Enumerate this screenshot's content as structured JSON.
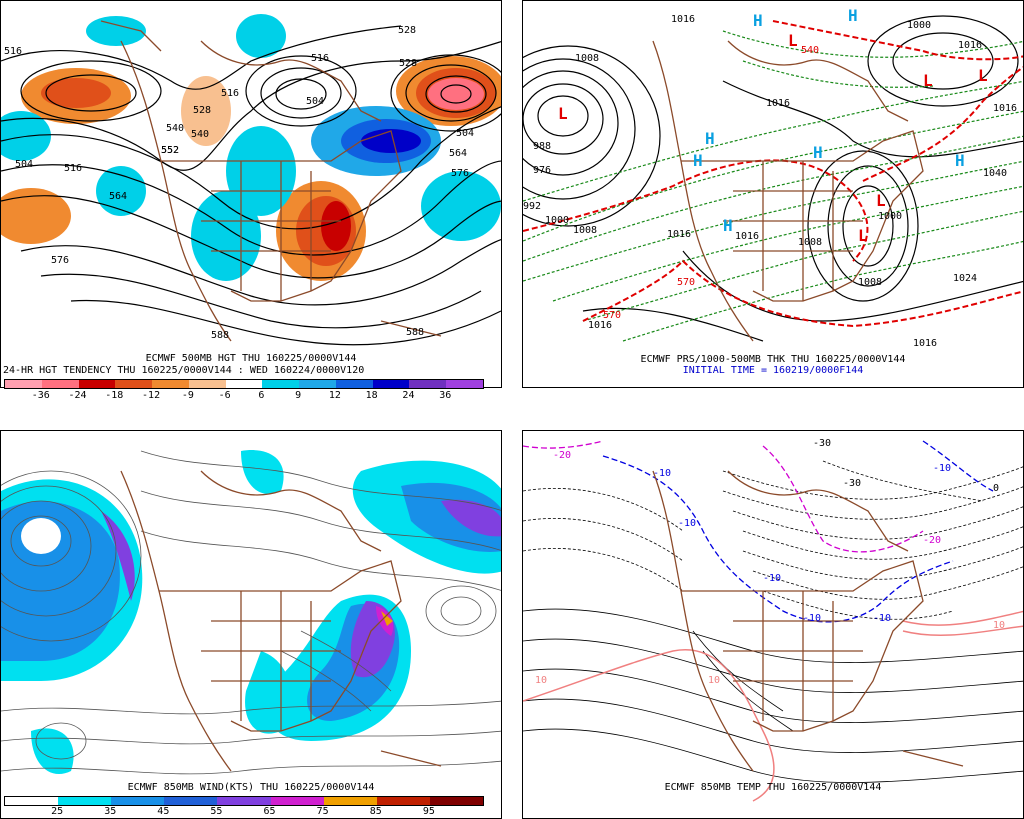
{
  "panel1": {
    "caption_line1": "ECMWF 500MB HGT THU 160225/0000V144",
    "caption_line2": "24-HR HGT TENDENCY THU 160225/0000V144 : WED 160224/0000V120",
    "contour_labels": [
      "516",
      "528",
      "540",
      "504",
      "552",
      "528",
      "540",
      "516",
      "516",
      "504",
      "528",
      "552",
      "564",
      "576",
      "564",
      "576",
      "588",
      "588",
      "516",
      "504"
    ],
    "colorbar_ticks": [
      "-36",
      "-24",
      "-18",
      "-12",
      "-9",
      "-6",
      "6",
      "9",
      "12",
      "18",
      "24",
      "36"
    ],
    "colorbar_colors": [
      "#ff9fb0",
      "#ff7080",
      "#c80000",
      "#e0501a",
      "#f08a30",
      "#f8c090",
      "#ffffff",
      "#00d0e8",
      "#20a8e8",
      "#1060e0",
      "#0000c8",
      "#7030c0",
      "#a040e0"
    ]
  },
  "panel2": {
    "caption_line1": "ECMWF PRS/1000-500MB THK THU 160225/0000V144",
    "caption_line2": "INITIAL TIME = 160219/0000F144",
    "isobar_labels": [
      "1016",
      "1008",
      "1000",
      "988",
      "976",
      "992",
      "1000",
      "1008",
      "1016",
      "1016",
      "1016",
      "1008",
      "1016",
      "1000",
      "1024",
      "1040",
      "1016",
      "1016",
      "1008",
      "1016"
    ],
    "thickness_labels": [
      "570",
      "570",
      "540"
    ],
    "high_symbol": "H",
    "low_symbol": "L"
  },
  "panel3": {
    "caption_line1": "ECMWF 850MB WIND(KTS) THU 160225/0000V144",
    "colorbar_ticks": [
      "25",
      "35",
      "45",
      "55",
      "65",
      "75",
      "85",
      "95"
    ],
    "colorbar_colors": [
      "#ffffff",
      "#00e0f0",
      "#1890e8",
      "#2060d8",
      "#8040e0",
      "#d020d0",
      "#f0a000",
      "#c02000",
      "#800000"
    ]
  },
  "panel4": {
    "caption_line1": "ECMWF 850MB TEMP THU 160225/0000V144",
    "temp_labels": [
      "-10",
      "-10",
      "-10",
      "-10",
      "-20",
      "-30",
      "-20",
      "-30",
      "-10",
      "-10",
      "0",
      "10",
      "10",
      "10"
    ]
  },
  "colors": {
    "coast": "#8b4a2a",
    "contour": "#000000",
    "thk_red": "#e00000",
    "thk_green": "#1a8a1a",
    "temp_blue": "#0000e0",
    "temp_magenta": "#d000d0",
    "temp_pink": "#f08080"
  }
}
